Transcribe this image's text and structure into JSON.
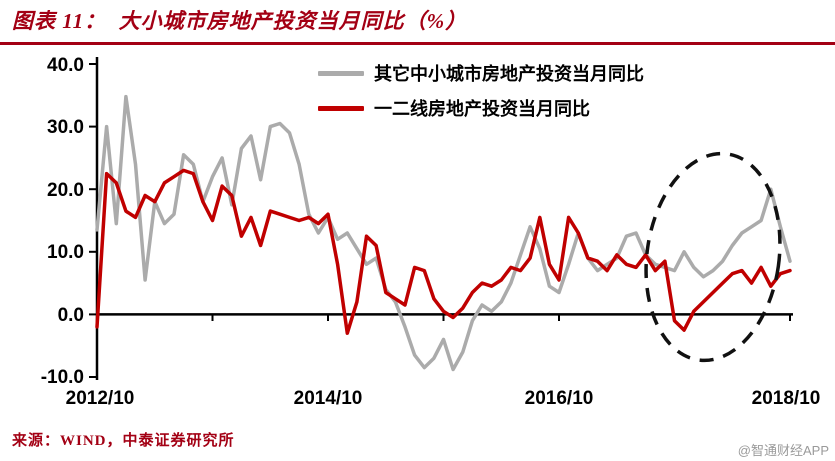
{
  "header": {
    "title": "图表 11：  大小城市房地产投资当月同比（%）"
  },
  "footer": {
    "source": "来源：WIND，中泰证券研究所",
    "watermark": "@智通财经APP"
  },
  "colors": {
    "title_red": "#a30014",
    "series_gray": "#ababab",
    "series_red": "#c00000",
    "axis_black": "#000000",
    "watermark_gray": "#9a9a9a"
  },
  "chart_data": {
    "type": "line",
    "title": "大小城市房地产投资当月同比（%）",
    "xlabel": "",
    "ylabel": "",
    "ylim": [
      -10,
      40
    ],
    "grid": false,
    "legend_position": "top-center",
    "y_ticks": [
      40.0,
      30.0,
      20.0,
      10.0,
      0.0,
      -10.0
    ],
    "y_tick_labels": [
      "40.0",
      "30.0",
      "20.0",
      "10.0",
      "0.0",
      "-10.0"
    ],
    "x_tick_labels": [
      "2012/10",
      "2014/10",
      "2016/10",
      "2018/10"
    ],
    "x_range": [
      "2012/10",
      "2018/10"
    ],
    "x_frequency": "monthly",
    "annotations": [
      {
        "type": "ellipse",
        "style": "dashed",
        "highlights": "late 2017 - 2018/10 divergence between the two series"
      }
    ],
    "series": [
      {
        "name": "其它中小城市房地产投资当月同比",
        "color": "#ababab",
        "values": [
          13.5,
          30,
          14.5,
          34.8,
          24,
          5.5,
          18,
          14.5,
          16,
          25.5,
          24,
          18,
          22,
          25,
          17.5,
          26.5,
          28.5,
          21.5,
          30,
          30.5,
          29,
          24,
          16,
          13,
          15.5,
          12,
          13,
          10.5,
          8,
          9,
          4,
          2,
          -2,
          -6.5,
          -8.5,
          -7,
          -4,
          -8.8,
          -6,
          -1,
          1.5,
          0.5,
          2,
          5,
          9.5,
          14,
          10.5,
          4.5,
          3.5,
          8,
          13,
          9,
          7,
          8,
          9,
          12.5,
          13,
          9.5,
          8,
          7.5,
          7,
          10,
          7.5,
          6,
          7,
          8.5,
          11,
          13,
          14,
          15,
          20,
          14,
          8.5
        ]
      },
      {
        "name": "一二线房地产投资当月同比",
        "color": "#c00000",
        "values": [
          -2,
          22.5,
          21,
          16.5,
          15.5,
          19,
          18,
          21,
          22,
          23,
          22.5,
          18,
          15,
          20.5,
          19,
          12.5,
          15.5,
          11,
          16.5,
          16,
          15.5,
          15,
          15.5,
          14.5,
          16,
          8,
          -3,
          2,
          12.5,
          11,
          3.5,
          2.5,
          1.5,
          7.5,
          7,
          2.5,
          0.5,
          -0.5,
          1,
          3.5,
          5,
          4.5,
          5.5,
          7.5,
          7,
          9,
          15.5,
          8,
          5.5,
          15.5,
          13,
          9,
          8.5,
          7,
          9.5,
          8,
          7.5,
          9.5,
          7,
          8.5,
          -1,
          -2.5,
          0.5,
          2,
          3.5,
          5,
          6.5,
          7,
          5,
          7.5,
          4.5,
          6.5,
          7
        ]
      }
    ]
  }
}
